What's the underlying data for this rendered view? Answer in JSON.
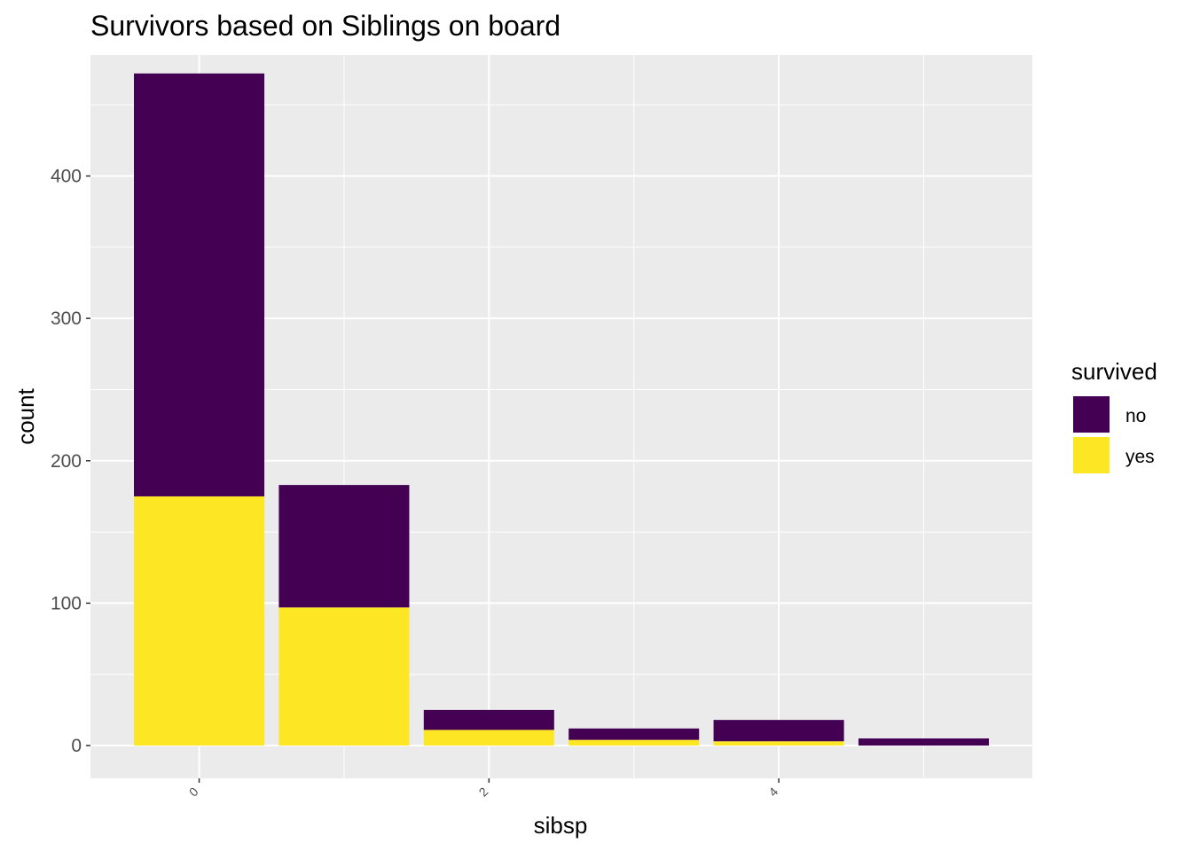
{
  "chart_data": {
    "type": "bar",
    "stacked": true,
    "title": "Survivors based on Siblings on board",
    "xlabel": "sibsp",
    "ylabel": "count",
    "x": [
      0,
      1,
      2,
      3,
      4,
      5
    ],
    "x_tick_labels": [
      "0",
      "2",
      "4"
    ],
    "x_ticks": [
      0,
      2,
      4
    ],
    "y_ticks": [
      0,
      100,
      200,
      300,
      400
    ],
    "y_tick_labels": [
      "0",
      "100",
      "200",
      "300",
      "400"
    ],
    "xlim": [
      -0.75,
      5.75
    ],
    "ylim": [
      -23,
      485
    ],
    "series": [
      {
        "name": "no",
        "color": "#440154",
        "values": [
          297,
          86,
          14,
          8,
          15,
          5
        ]
      },
      {
        "name": "yes",
        "color": "#FDE725",
        "values": [
          175,
          97,
          11,
          4,
          3,
          0
        ]
      }
    ],
    "legend": {
      "title": "survived",
      "position": "right"
    },
    "grid": true,
    "panel_background": "#EBEBEB"
  }
}
